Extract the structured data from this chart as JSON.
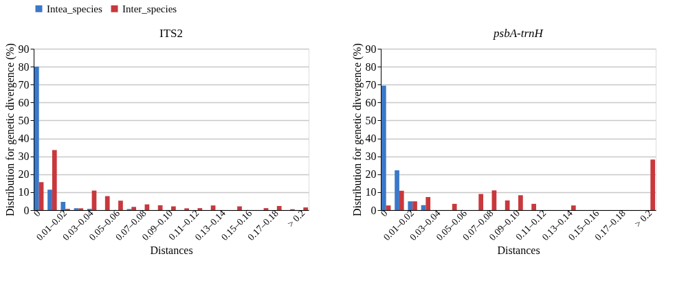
{
  "chart_data": [
    {
      "type": "bar",
      "title": "ITS2",
      "xlabel": "Distances",
      "ylabel": "Distribution for genetic divergence (%)",
      "categories": [
        "0",
        null,
        "0.01–0.02",
        null,
        "0.03–0.04",
        null,
        "0.05–0.06",
        null,
        "0.07–0.08",
        null,
        "0.09–0.10",
        null,
        "0.11–0.12",
        null,
        "0.13–0.14",
        null,
        "0.15–0.16",
        null,
        "0.17–0.18",
        null,
        "> 0.2"
      ],
      "series": [
        {
          "name": "Intea_species",
          "color": "#3a78c8",
          "values": [
            80,
            11.4,
            4.6,
            1.1,
            0.7,
            0,
            0,
            0.6,
            0,
            0,
            0,
            0,
            0,
            0,
            0,
            0,
            0,
            0,
            0,
            0,
            0
          ]
        },
        {
          "name": "Inter_species",
          "color": "#c8383c",
          "values": [
            15.6,
            33.5,
            0.7,
            1.0,
            10.9,
            7.8,
            5.3,
            1.8,
            3.2,
            2.7,
            2.1,
            1.0,
            1.1,
            2.6,
            0,
            2.1,
            0,
            1.1,
            2.3,
            0.5,
            1.5
          ]
        }
      ],
      "ylim": [
        0,
        90
      ],
      "yticks": [
        0,
        10,
        20,
        30,
        40,
        50,
        60,
        70,
        80,
        90
      ],
      "grid": "y",
      "legend": "top"
    },
    {
      "type": "bar",
      "title": "psbA-trnH",
      "xlabel": "Distances",
      "ylabel": "Distribution for genetic divergence (%)",
      "categories": [
        "0",
        null,
        "0.01–0.02",
        null,
        "0.03–0.04",
        null,
        "0.05–0.06",
        null,
        "0.07–0.08",
        null,
        "0.09–0.10",
        null,
        "0.11–0.12",
        null,
        "0.13–0.14",
        null,
        "0.15–0.16",
        null,
        "0.17–0.18",
        null,
        "> 0.2"
      ],
      "series": [
        {
          "name": "Intea_species",
          "color": "#3a78c8",
          "values": [
            69.4,
            22.2,
            4.9,
            2.8,
            0,
            0,
            0,
            0,
            0,
            0,
            0,
            0,
            0,
            0,
            0,
            0,
            0,
            0,
            0,
            0,
            0
          ]
        },
        {
          "name": "Inter_species",
          "color": "#c8383c",
          "values": [
            2.6,
            10.8,
            4.9,
            7.3,
            0,
            3.5,
            0,
            9.0,
            11.0,
            5.4,
            8.3,
            3.5,
            0,
            0,
            2.6,
            0,
            0,
            0,
            0,
            0,
            28.2
          ]
        }
      ],
      "ylim": [
        0,
        90
      ],
      "yticks": [
        0,
        10,
        20,
        30,
        40,
        50,
        60,
        70,
        80,
        90
      ],
      "grid": "y",
      "legend": "top"
    }
  ]
}
